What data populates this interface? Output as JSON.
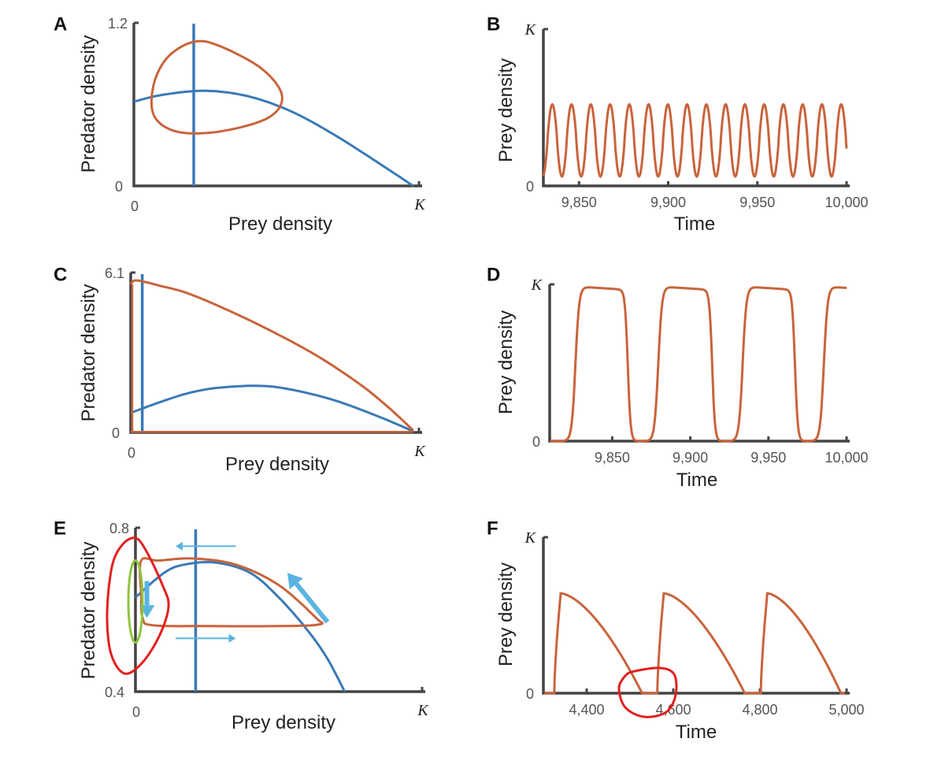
{
  "colors": {
    "axis": "#444444",
    "tick_text": "#555555",
    "orange": "#c8643c",
    "blue": "#3a7ab5",
    "light_blue": "#5ab4e0",
    "green": "#8ec63f",
    "red_annotation": "#e02020"
  },
  "chart_data": [
    {
      "panel": "A",
      "type": "line",
      "xlabel": "Prey density",
      "ylabel": "Predator density",
      "x_ticks": [
        "0",
        "K"
      ],
      "y_ticks": [
        "0",
        "1.2"
      ],
      "xlim": [
        0,
        1
      ],
      "ylim": [
        0,
        1.2
      ],
      "vertical_nullcline_x": 0.21,
      "hump_nullcline": [
        [
          0,
          0.62
        ],
        [
          0.1,
          0.67
        ],
        [
          0.25,
          0.7
        ],
        [
          0.4,
          0.66
        ],
        [
          0.55,
          0.55
        ],
        [
          0.7,
          0.38
        ],
        [
          0.85,
          0.18
        ],
        [
          0.98,
          0
        ]
      ],
      "limit_cycle": [
        [
          0.21,
          1.06
        ],
        [
          0.3,
          1.03
        ],
        [
          0.45,
          0.86
        ],
        [
          0.52,
          0.66
        ],
        [
          0.47,
          0.5
        ],
        [
          0.3,
          0.4
        ],
        [
          0.15,
          0.4
        ],
        [
          0.07,
          0.52
        ],
        [
          0.07,
          0.75
        ],
        [
          0.12,
          0.95
        ]
      ]
    },
    {
      "panel": "B",
      "type": "line",
      "xlabel": "Time",
      "ylabel": "Prey density",
      "x_ticks": [
        "9,850",
        "9,900",
        "9,950",
        "10,000"
      ],
      "y_ticks": [
        "0",
        "K"
      ],
      "xlim": [
        9830,
        10000
      ],
      "ylim": [
        0,
        1
      ],
      "series": [
        {
          "period": 10.8,
          "min": 0.06,
          "max": 0.52,
          "first_peak": 9835
        }
      ]
    },
    {
      "panel": "C",
      "type": "line",
      "xlabel": "Prey density",
      "ylabel": "Predator density",
      "x_ticks": [
        "0",
        "K"
      ],
      "y_ticks": [
        "0",
        "6.1"
      ],
      "xlim": [
        0,
        1
      ],
      "ylim": [
        0,
        6.1
      ],
      "vertical_nullcline_x": 0.04,
      "hump_nullcline": [
        [
          0,
          0.75
        ],
        [
          0.1,
          1.15
        ],
        [
          0.2,
          1.5
        ],
        [
          0.3,
          1.7
        ],
        [
          0.44,
          1.78
        ],
        [
          0.55,
          1.65
        ],
        [
          0.7,
          1.25
        ],
        [
          0.85,
          0.65
        ],
        [
          0.98,
          0.05
        ]
      ],
      "cycle_top": [
        [
          0,
          5.65
        ],
        [
          0.02,
          5.8
        ],
        [
          0.1,
          5.6
        ],
        [
          0.2,
          5.3
        ],
        [
          0.35,
          4.6
        ],
        [
          0.5,
          3.8
        ],
        [
          0.65,
          2.9
        ],
        [
          0.8,
          1.8
        ],
        [
          0.9,
          0.9
        ],
        [
          0.98,
          0.08
        ]
      ],
      "cycle_bottom": [
        [
          0,
          0.02
        ],
        [
          0.98,
          0.02
        ]
      ]
    },
    {
      "panel": "D",
      "type": "line",
      "xlabel": "Time",
      "ylabel": "Prey density",
      "x_ticks": [
        "9,850",
        "9,900",
        "9,950",
        "10,000"
      ],
      "y_ticks": [
        "0",
        "K"
      ],
      "xlim": [
        9810,
        10000
      ],
      "ylim": [
        0,
        1
      ],
      "series": [
        {
          "rises": [
            9822,
            9875,
            9929,
            9981
          ],
          "falls": [
            9860,
            9914,
            9967
          ],
          "min": 0,
          "max": 0.99
        }
      ]
    },
    {
      "panel": "E",
      "type": "line",
      "xlabel": "Prey density",
      "ylabel": "Predator density",
      "x_ticks": [
        "0",
        "K"
      ],
      "y_ticks": [
        "0.4",
        "0.8"
      ],
      "xlim": [
        0,
        1
      ],
      "ylim": [
        0.4,
        0.8
      ],
      "vertical_nullcline_x": 0.21,
      "hump_nullcline": [
        [
          0,
          0.63
        ],
        [
          0.1,
          0.69
        ],
        [
          0.17,
          0.71
        ],
        [
          0.28,
          0.715
        ],
        [
          0.4,
          0.69
        ],
        [
          0.5,
          0.63
        ],
        [
          0.6,
          0.55
        ],
        [
          0.67,
          0.48
        ],
        [
          0.73,
          0.4
        ]
      ],
      "cycle": [
        [
          0.02,
          0.72
        ],
        [
          0.08,
          0.72
        ],
        [
          0.2,
          0.725
        ],
        [
          0.35,
          0.71
        ],
        [
          0.5,
          0.66
        ],
        [
          0.63,
          0.58
        ],
        [
          0.64,
          0.564
        ],
        [
          0.5,
          0.56
        ],
        [
          0.25,
          0.56
        ],
        [
          0.06,
          0.562
        ],
        [
          0.025,
          0.58
        ],
        [
          0.02,
          0.64
        ]
      ]
    },
    {
      "panel": "F",
      "type": "line",
      "xlabel": "Time",
      "ylabel": "Prey density",
      "x_ticks": [
        "4,400",
        "4,600",
        "4,800",
        "5,000"
      ],
      "y_ticks": [
        "0",
        "K"
      ],
      "xlim": [
        4300,
        5000
      ],
      "ylim": [
        0,
        1
      ],
      "series": [
        {
          "rises": [
            4325,
            4563,
            4802
          ],
          "peaks": [
            4340,
            4578,
            4817
          ],
          "troughs": [
            4528,
            4765,
            4987
          ],
          "max": 0.64,
          "min": 0
        }
      ]
    }
  ]
}
